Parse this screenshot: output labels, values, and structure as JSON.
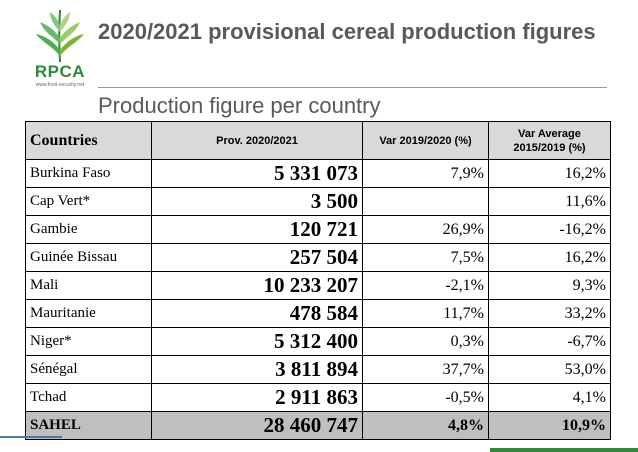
{
  "logo": {
    "text": "RPCA",
    "subtext": "www.food-security.net",
    "color": "#2e8b3a"
  },
  "title": "2020/2021 provisional cereal production figures",
  "subtitle": "Production figure per country",
  "table": {
    "headers": [
      "Countries",
      "Prov. 2020/2021",
      "Var 2019/2020 (%)",
      "Var Average 2015/2019 (%)"
    ],
    "rows": [
      [
        "Burkina Faso",
        "5 331 073",
        "7,9%",
        "16,2%"
      ],
      [
        "Cap Vert*",
        "3 500",
        "",
        "11,6%"
      ],
      [
        "Gambie",
        "120 721",
        "26,9%",
        "-16,2%"
      ],
      [
        "Guinée Bissau",
        "257 504",
        "7,5%",
        "16,2%"
      ],
      [
        "Mali",
        "10 233 207",
        "-2,1%",
        "9,3%"
      ],
      [
        "Mauritanie",
        "478 584",
        "11,7%",
        "33,2%"
      ],
      [
        "Niger*",
        "5 312 400",
        "0,3%",
        "-6,7%"
      ],
      [
        "Sénégal",
        "3 811 894",
        "37,7%",
        "53,0%"
      ],
      [
        "Tchad",
        "2 911 863",
        "-0,5%",
        "4,1%"
      ]
    ],
    "total": [
      "SAHEL",
      "28 460 747",
      "4,8%",
      "10,9%"
    ]
  }
}
